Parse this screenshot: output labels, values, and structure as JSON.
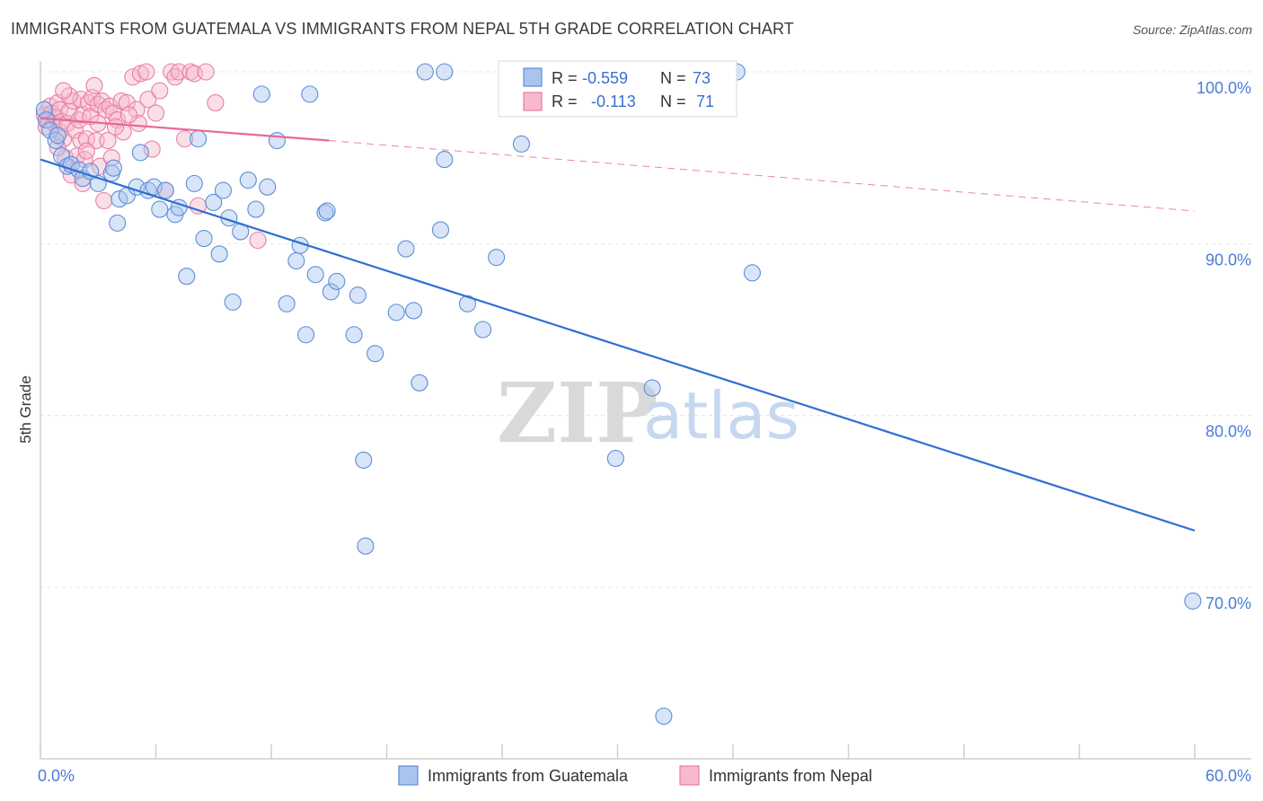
{
  "header": {
    "title": "IMMIGRANTS FROM GUATEMALA VS IMMIGRANTS FROM NEPAL 5TH GRADE CORRELATION CHART",
    "source": "Source: ZipAtlas.com"
  },
  "watermark": {
    "zip": "ZIP",
    "atlas": "atlas"
  },
  "legend": {
    "r_label": "R =",
    "n_label": "N =",
    "rows": [
      {
        "r": "-0.559",
        "n": "73",
        "color": "#a9c4ee",
        "stroke": "#5b8fd8"
      },
      {
        "r": "-0.113",
        "n": "71",
        "color": "#f7b9cc",
        "stroke": "#e87fa2"
      }
    ]
  },
  "chart_data": {
    "type": "scatter",
    "title": "IMMIGRANTS FROM GUATEMALA VS IMMIGRANTS FROM NEPAL 5TH GRADE CORRELATION CHART",
    "xlabel": "",
    "ylabel": "5th Grade",
    "xlim": [
      0,
      60
    ],
    "ylim": [
      61.5,
      101.5
    ],
    "x_tick_labels": [
      "0.0%",
      "60.0%"
    ],
    "y_ticks": [
      70,
      80,
      90,
      100
    ],
    "y_tick_labels": [
      "70.0%",
      "80.0%",
      "90.0%",
      "100.0%"
    ],
    "legend_position": "bottom-center",
    "series": [
      {
        "name": "Immigrants from Guatemala",
        "color": "#5b8fd8",
        "fill": "rgba(169,196,238,0.45)",
        "trend": {
          "x": [
            0,
            60
          ],
          "y": [
            94.9,
            73.3
          ],
          "style": "solid"
        },
        "points": [
          [
            0.2,
            97.8
          ],
          [
            0.3,
            97.2
          ],
          [
            0.5,
            96.6
          ],
          [
            0.8,
            96.0
          ],
          [
            1.1,
            95.1
          ],
          [
            1.4,
            94.5
          ],
          [
            1.6,
            94.6
          ],
          [
            2.0,
            94.3
          ],
          [
            2.2,
            93.8
          ],
          [
            2.6,
            94.2
          ],
          [
            3.0,
            93.5
          ],
          [
            3.7,
            94.1
          ],
          [
            3.8,
            94.4
          ],
          [
            4.1,
            92.6
          ],
          [
            4.5,
            92.8
          ],
          [
            4.0,
            91.2
          ],
          [
            5.0,
            93.3
          ],
          [
            5.2,
            95.3
          ],
          [
            5.6,
            93.1
          ],
          [
            5.9,
            93.3
          ],
          [
            6.2,
            92.0
          ],
          [
            6.5,
            93.1
          ],
          [
            7.0,
            91.7
          ],
          [
            7.2,
            92.1
          ],
          [
            7.6,
            88.1
          ],
          [
            8.0,
            93.5
          ],
          [
            8.2,
            96.1
          ],
          [
            8.5,
            90.3
          ],
          [
            9.0,
            92.4
          ],
          [
            9.3,
            89.4
          ],
          [
            9.5,
            93.1
          ],
          [
            9.8,
            91.5
          ],
          [
            10.0,
            86.6
          ],
          [
            10.4,
            90.7
          ],
          [
            10.8,
            93.7
          ],
          [
            11.2,
            92.0
          ],
          [
            11.5,
            98.7
          ],
          [
            11.8,
            93.3
          ],
          [
            12.3,
            96.0
          ],
          [
            12.8,
            86.5
          ],
          [
            13.3,
            89.0
          ],
          [
            13.5,
            89.9
          ],
          [
            13.8,
            84.7
          ],
          [
            14.0,
            98.7
          ],
          [
            14.3,
            88.2
          ],
          [
            14.8,
            91.8
          ],
          [
            14.9,
            91.9
          ],
          [
            15.1,
            87.2
          ],
          [
            15.4,
            87.8
          ],
          [
            16.3,
            84.7
          ],
          [
            16.5,
            87.0
          ],
          [
            16.8,
            77.4
          ],
          [
            16.9,
            72.4
          ],
          [
            17.4,
            83.6
          ],
          [
            18.5,
            86.0
          ],
          [
            19.0,
            89.7
          ],
          [
            19.4,
            86.1
          ],
          [
            19.7,
            81.9
          ],
          [
            20.0,
            100.0
          ],
          [
            20.8,
            90.8
          ],
          [
            21.0,
            94.9
          ],
          [
            21.0,
            100.0
          ],
          [
            22.2,
            86.5
          ],
          [
            23.0,
            85.0
          ],
          [
            23.7,
            89.2
          ],
          [
            25.0,
            95.8
          ],
          [
            29.9,
            77.5
          ],
          [
            31.8,
            81.6
          ],
          [
            32.4,
            62.5
          ],
          [
            36.2,
            100.0
          ],
          [
            37.0,
            88.3
          ],
          [
            59.9,
            69.2
          ],
          [
            0.9,
            96.3
          ]
        ]
      },
      {
        "name": "Immigrants from Nepal",
        "color": "#e87fa2",
        "fill": "rgba(247,185,204,0.45)",
        "trend": {
          "x": [
            0,
            15
          ],
          "y": [
            97.3,
            96.0
          ],
          "style": "solid",
          "ext_x": [
            15,
            60
          ],
          "ext_y": [
            96.0,
            91.9
          ],
          "ext_style": "dashed"
        },
        "points": [
          [
            0.2,
            97.5
          ],
          [
            0.3,
            96.8
          ],
          [
            0.4,
            97.2
          ],
          [
            0.5,
            98.0
          ],
          [
            0.6,
            97.6
          ],
          [
            0.7,
            97.0
          ],
          [
            0.8,
            97.4
          ],
          [
            0.9,
            98.2
          ],
          [
            1.0,
            96.5
          ],
          [
            1.0,
            97.8
          ],
          [
            1.1,
            97.1
          ],
          [
            1.2,
            96.1
          ],
          [
            1.3,
            95.0
          ],
          [
            1.4,
            97.0
          ],
          [
            1.5,
            97.7
          ],
          [
            1.6,
            94.0
          ],
          [
            1.7,
            98.3
          ],
          [
            1.8,
            96.6
          ],
          [
            1.9,
            95.1
          ],
          [
            2.0,
            97.2
          ],
          [
            2.1,
            98.4
          ],
          [
            2.1,
            96.0
          ],
          [
            2.2,
            97.5
          ],
          [
            2.3,
            94.9
          ],
          [
            2.4,
            96.1
          ],
          [
            2.5,
            98.2
          ],
          [
            2.6,
            97.4
          ],
          [
            2.7,
            98.5
          ],
          [
            2.8,
            99.2
          ],
          [
            2.9,
            96.0
          ],
          [
            3.0,
            98.1
          ],
          [
            3.0,
            97.0
          ],
          [
            3.1,
            94.5
          ],
          [
            3.2,
            98.3
          ],
          [
            3.3,
            92.5
          ],
          [
            3.4,
            97.8
          ],
          [
            3.5,
            96.0
          ],
          [
            3.6,
            98.0
          ],
          [
            3.7,
            95.0
          ],
          [
            3.8,
            97.6
          ],
          [
            4.0,
            97.2
          ],
          [
            4.2,
            98.3
          ],
          [
            4.3,
            96.5
          ],
          [
            4.5,
            98.2
          ],
          [
            4.8,
            99.7
          ],
          [
            5.0,
            97.8
          ],
          [
            5.1,
            97.0
          ],
          [
            5.2,
            99.9
          ],
          [
            5.5,
            100.0
          ],
          [
            5.6,
            98.4
          ],
          [
            5.8,
            95.5
          ],
          [
            6.0,
            97.6
          ],
          [
            6.2,
            98.9
          ],
          [
            6.5,
            93.1
          ],
          [
            6.8,
            100.0
          ],
          [
            7.0,
            99.7
          ],
          [
            7.2,
            100.0
          ],
          [
            7.5,
            96.1
          ],
          [
            7.8,
            100.0
          ],
          [
            8.0,
            99.9
          ],
          [
            8.2,
            92.2
          ],
          [
            8.6,
            100.0
          ],
          [
            9.1,
            98.2
          ],
          [
            11.3,
            90.2
          ],
          [
            1.5,
            98.6
          ],
          [
            0.9,
            95.6
          ],
          [
            2.4,
            95.4
          ],
          [
            4.6,
            97.5
          ],
          [
            2.2,
            93.5
          ],
          [
            1.2,
            98.9
          ],
          [
            3.9,
            96.8
          ]
        ]
      }
    ]
  }
}
